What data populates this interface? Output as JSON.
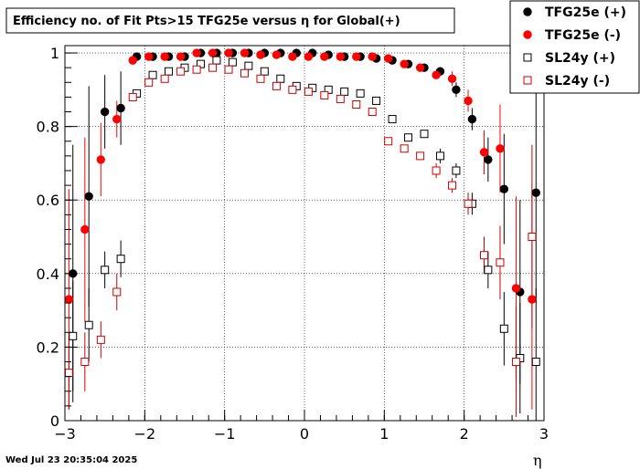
{
  "chart_data": {
    "type": "scatter",
    "title": "Efficiency no. of Fit Pts>15 TFG25e versus η for Global(+)",
    "xlabel": "η",
    "ylabel": "",
    "xlim": [
      -3,
      3
    ],
    "ylim": [
      0,
      1.02
    ],
    "x_ticks": [
      -3,
      -2,
      -1,
      0,
      1,
      2,
      3
    ],
    "x_tick_labels": [
      "−3",
      "−2",
      "−1",
      "0",
      "1",
      "2",
      "3"
    ],
    "y_ticks": [
      0,
      0.2,
      0.4,
      0.6,
      0.8,
      1
    ],
    "y_tick_labels": [
      "0",
      "0.2",
      "0.4",
      "0.6",
      "0.8",
      "1"
    ],
    "grid": true,
    "legend_position": "top-right",
    "footer": "Wed Jul 23 20:35:04 2025",
    "series": [
      {
        "name": "TFG25e (+)",
        "color": "#000000",
        "marker": "filled-circle",
        "x": [
          -2.9,
          -2.7,
          -2.5,
          -2.3,
          -2.1,
          -1.9,
          -1.7,
          -1.5,
          -1.3,
          -1.1,
          -0.9,
          -0.7,
          -0.5,
          -0.3,
          -0.1,
          0.1,
          0.3,
          0.5,
          0.7,
          0.9,
          1.1,
          1.3,
          1.5,
          1.7,
          1.9,
          2.1,
          2.3,
          2.5,
          2.7,
          2.9
        ],
        "y": [
          0.4,
          0.61,
          0.84,
          0.85,
          0.99,
          0.99,
          0.99,
          0.99,
          1.0,
          1.0,
          1.0,
          1.0,
          1.0,
          1.0,
          1.0,
          1.0,
          0.995,
          0.99,
          0.99,
          0.985,
          0.98,
          0.97,
          0.96,
          0.95,
          0.9,
          0.82,
          0.71,
          0.63,
          0.35,
          0.62
        ],
        "err": [
          0.35,
          0.3,
          0.1,
          0.1,
          0.01,
          0.005,
          0.005,
          0.003,
          0.002,
          0.002,
          0.002,
          0.002,
          0.002,
          0.002,
          0.002,
          0.002,
          0.002,
          0.002,
          0.002,
          0.003,
          0.004,
          0.005,
          0.008,
          0.01,
          0.02,
          0.03,
          0.06,
          0.15,
          0.25,
          0.3
        ]
      },
      {
        "name": "TFG25e (-)",
        "color": "#ff0000",
        "marker": "filled-circle",
        "x": [
          -2.95,
          -2.75,
          -2.55,
          -2.35,
          -2.15,
          -1.95,
          -1.75,
          -1.55,
          -1.35,
          -1.15,
          -0.95,
          -0.75,
          -0.55,
          -0.35,
          -0.15,
          0.05,
          0.25,
          0.45,
          0.65,
          0.85,
          1.05,
          1.25,
          1.45,
          1.65,
          1.85,
          2.05,
          2.25,
          2.45,
          2.65,
          2.85
        ],
        "y": [
          0.33,
          0.52,
          0.71,
          0.82,
          0.98,
          0.99,
          0.99,
          0.99,
          1.0,
          1.0,
          1.0,
          1.0,
          0.995,
          0.995,
          0.99,
          0.99,
          0.99,
          0.99,
          0.99,
          0.99,
          0.985,
          0.97,
          0.96,
          0.94,
          0.93,
          0.87,
          0.73,
          0.74,
          0.36,
          0.33
        ],
        "err": [
          0.3,
          0.25,
          0.1,
          0.05,
          0.01,
          0.005,
          0.004,
          0.003,
          0.002,
          0.002,
          0.002,
          0.002,
          0.002,
          0.002,
          0.002,
          0.002,
          0.002,
          0.002,
          0.003,
          0.003,
          0.004,
          0.005,
          0.008,
          0.01,
          0.02,
          0.03,
          0.06,
          0.12,
          0.25,
          0.3
        ]
      },
      {
        "name": "SL24y (+)",
        "color": "#000000",
        "marker": "open-square",
        "x": [
          -2.9,
          -2.7,
          -2.5,
          -2.3,
          -2.1,
          -1.9,
          -1.7,
          -1.5,
          -1.3,
          -1.1,
          -0.9,
          -0.7,
          -0.5,
          -0.3,
          -0.1,
          0.1,
          0.3,
          0.5,
          0.7,
          0.9,
          1.1,
          1.3,
          1.5,
          1.7,
          1.9,
          2.1,
          2.3,
          2.5,
          2.7,
          2.9
        ],
        "y": [
          0.23,
          0.26,
          0.41,
          0.44,
          0.89,
          0.94,
          0.95,
          0.96,
          0.97,
          0.98,
          0.975,
          0.965,
          0.95,
          0.93,
          0.91,
          0.905,
          0.9,
          0.895,
          0.89,
          0.87,
          0.82,
          0.77,
          0.78,
          0.72,
          0.68,
          0.59,
          0.41,
          0.25,
          0.17,
          0.16
        ],
        "err": [
          0.15,
          0.1,
          0.05,
          0.05,
          0.01,
          0.005,
          0.005,
          0.004,
          0.003,
          0.003,
          0.003,
          0.003,
          0.003,
          0.003,
          0.003,
          0.003,
          0.003,
          0.003,
          0.004,
          0.005,
          0.008,
          0.01,
          0.01,
          0.02,
          0.02,
          0.03,
          0.05,
          0.1,
          0.15,
          0.2
        ]
      },
      {
        "name": "SL24y (-)",
        "color": "#cc0000",
        "marker": "open-square",
        "x": [
          -2.95,
          -2.75,
          -2.55,
          -2.35,
          -2.15,
          -1.95,
          -1.75,
          -1.55,
          -1.35,
          -1.15,
          -0.95,
          -0.75,
          -0.55,
          -0.35,
          -0.15,
          0.05,
          0.25,
          0.45,
          0.65,
          0.85,
          1.05,
          1.25,
          1.45,
          1.65,
          1.85,
          2.05,
          2.25,
          2.45,
          2.65,
          2.85
        ],
        "y": [
          0.13,
          0.16,
          0.22,
          0.35,
          0.88,
          0.92,
          0.93,
          0.95,
          0.955,
          0.96,
          0.955,
          0.945,
          0.93,
          0.91,
          0.9,
          0.895,
          0.885,
          0.875,
          0.86,
          0.84,
          0.76,
          0.74,
          0.72,
          0.68,
          0.64,
          0.59,
          0.45,
          0.43,
          0.16,
          0.5
        ],
        "err": [
          0.1,
          0.08,
          0.05,
          0.05,
          0.01,
          0.005,
          0.005,
          0.004,
          0.003,
          0.003,
          0.003,
          0.003,
          0.003,
          0.003,
          0.003,
          0.003,
          0.003,
          0.004,
          0.004,
          0.005,
          0.008,
          0.01,
          0.01,
          0.02,
          0.02,
          0.03,
          0.05,
          0.1,
          0.15,
          0.25
        ]
      }
    ]
  }
}
